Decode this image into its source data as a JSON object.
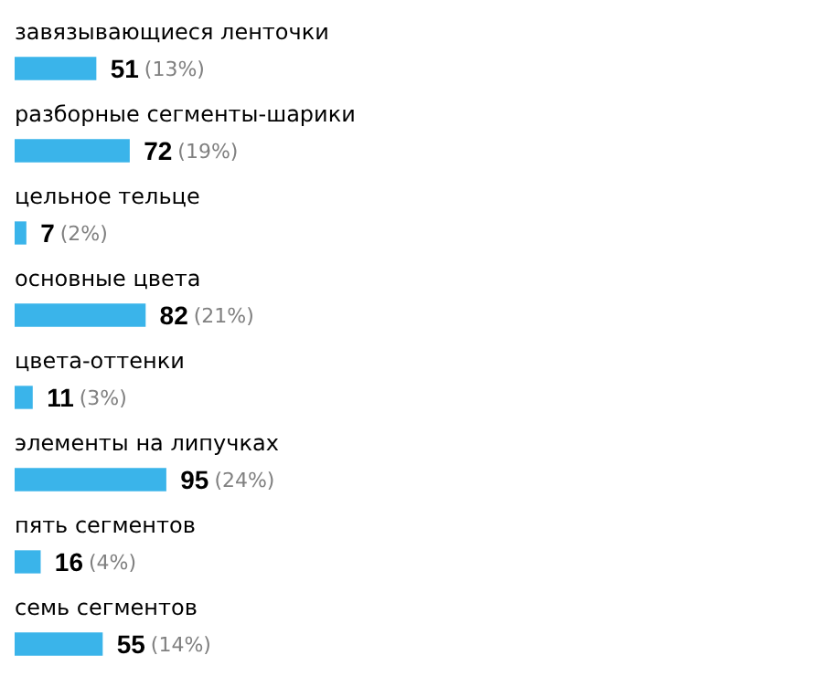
{
  "chart_data": {
    "type": "bar",
    "orientation": "horizontal",
    "categories": [
      "завязывающиеся ленточки",
      "разборные сегменты-шарики",
      "цельное тельце",
      "основные цвета",
      "цвета-оттенки",
      "элементы на липучках",
      "пять сегментов",
      "семь сегментов"
    ],
    "values": [
      51,
      72,
      7,
      82,
      11,
      95,
      16,
      55
    ],
    "value_labels": [
      "51 (13%)",
      "72 (19%)",
      "7 (2%)",
      "82 (21%)",
      "11 (3%)",
      "95 (24%)",
      "16 (4%)",
      "55 (14%)"
    ],
    "color": "#3ab4ea"
  }
}
